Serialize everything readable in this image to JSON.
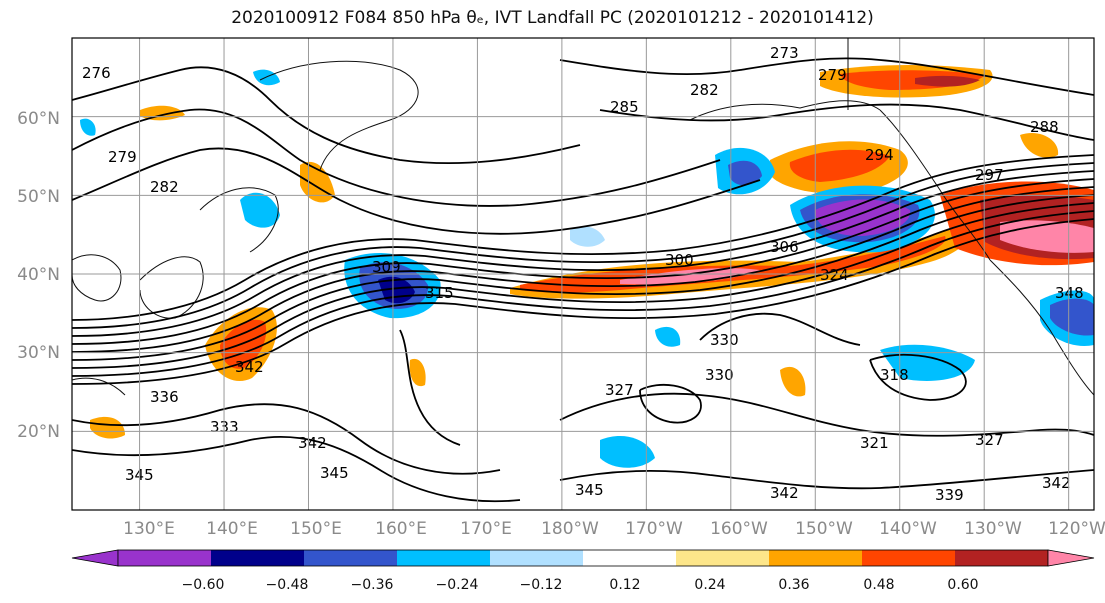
{
  "title": "2020100912 F084 850 hPa θₑ, IVT Landfall PC (2020101212 - 2020101412)",
  "map": {
    "lat_labels": [
      "60°N",
      "50°N",
      "40°N",
      "30°N",
      "20°N"
    ],
    "lon_labels": [
      "130°E",
      "140°E",
      "150°E",
      "160°E",
      "170°E",
      "180°W",
      "170°W",
      "160°W",
      "150°W",
      "140°W",
      "130°W",
      "120°W"
    ],
    "lon_range": [
      122,
      243
    ],
    "lat_range": [
      10,
      70
    ],
    "grid": true
  },
  "colorbar": {
    "colors": [
      "#9933cc",
      "#00008b",
      "#3355cc",
      "#00bfff",
      "#b0e0ff",
      "#ffffff",
      "#fde68a",
      "#ffa500",
      "#ff4500",
      "#b22222",
      "#ff85a8"
    ],
    "tick_labels": [
      "−0.60",
      "−0.48",
      "−0.36",
      "−0.24",
      "−0.12",
      "0.12",
      "0.24",
      "0.36",
      "0.48",
      "0.60"
    ],
    "extend": "both"
  },
  "contour_labels": [
    "276",
    "273",
    "279",
    "282",
    "285",
    "282",
    "279",
    "288",
    "294",
    "297",
    "300",
    "306",
    "309",
    "315",
    "318",
    "324",
    "327",
    "330",
    "330",
    "333",
    "336",
    "342",
    "342",
    "345",
    "345",
    "342",
    "339",
    "321",
    "327",
    "342",
    "345",
    "348"
  ]
}
